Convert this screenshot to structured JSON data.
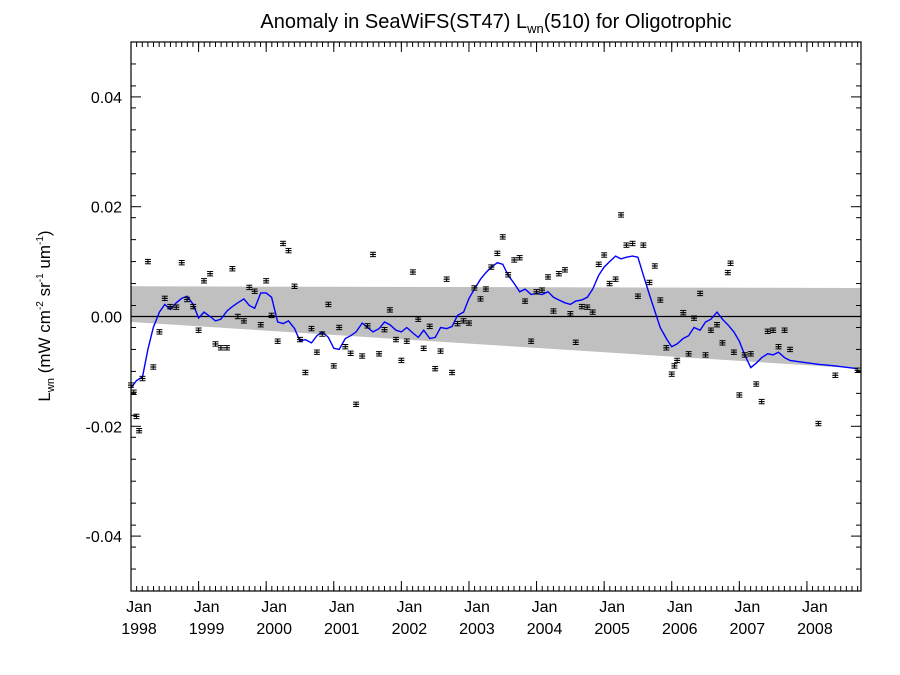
{
  "chart_data": {
    "type": "scatter",
    "title": "Anomaly in SeaWiFS(ST47) L",
    "title_sub": "wn",
    "title_rest": "(510) for Oligotrophic",
    "ylabel_parts": {
      "main": "L",
      "main_sub": "wn",
      "units_open": " (mW cm",
      "exp1": "-2",
      "mid1": " sr",
      "exp2": "-1",
      "mid2": " um",
      "exp3": "-1",
      "units_close": ")"
    },
    "xlim": [
      1998.0,
      2008.8
    ],
    "ylim": [
      -0.05,
      0.05
    ],
    "y_ticks": [
      {
        "value": 0.04,
        "label": "0.04"
      },
      {
        "value": 0.02,
        "label": "0.02"
      },
      {
        "value": 0.0,
        "label": "0.00"
      },
      {
        "value": -0.02,
        "label": "-0.02"
      },
      {
        "value": -0.04,
        "label": "-0.04"
      }
    ],
    "x_ticks": [
      {
        "value": 1998.0,
        "month": "Jan",
        "year": "1998"
      },
      {
        "value": 1999.0,
        "month": "Jan",
        "year": "1999"
      },
      {
        "value": 2000.0,
        "month": "Jan",
        "year": "2000"
      },
      {
        "value": 2001.0,
        "month": "Jan",
        "year": "2001"
      },
      {
        "value": 2002.0,
        "month": "Jan",
        "year": "2002"
      },
      {
        "value": 2003.0,
        "month": "Jan",
        "year": "2003"
      },
      {
        "value": 2004.0,
        "month": "Jan",
        "year": "2004"
      },
      {
        "value": 2005.0,
        "month": "Jan",
        "year": "2005"
      },
      {
        "value": 2006.0,
        "month": "Jan",
        "year": "2006"
      },
      {
        "value": 2007.0,
        "month": "Jan",
        "year": "2007"
      },
      {
        "value": 2008.0,
        "month": "Jan",
        "year": "2008"
      }
    ],
    "zero_line": 0.0,
    "confidence_band": {
      "color": "#c0c0c0",
      "start": {
        "x": 1998.0,
        "upper": 0.0055,
        "lower": -0.001
      },
      "end": {
        "x": 2008.8,
        "upper": 0.0052,
        "lower": -0.0095
      }
    },
    "points": [
      {
        "x": 1998.0,
        "y": -0.0125
      },
      {
        "x": 1998.04,
        "y": -0.0138
      },
      {
        "x": 1998.08,
        "y": -0.0182
      },
      {
        "x": 1998.12,
        "y": -0.0208
      },
      {
        "x": 1998.17,
        "y": -0.0113
      },
      {
        "x": 1998.25,
        "y": 0.01
      },
      {
        "x": 1998.33,
        "y": -0.0092
      },
      {
        "x": 1998.42,
        "y": -0.0028
      },
      {
        "x": 1998.5,
        "y": 0.0033
      },
      {
        "x": 1998.58,
        "y": 0.0018
      },
      {
        "x": 1998.67,
        "y": 0.0017
      },
      {
        "x": 1998.75,
        "y": 0.0098
      },
      {
        "x": 1998.83,
        "y": 0.0031
      },
      {
        "x": 1998.92,
        "y": 0.0018
      },
      {
        "x": 1999.0,
        "y": -0.0025
      },
      {
        "x": 1999.08,
        "y": 0.0065
      },
      {
        "x": 1999.17,
        "y": 0.0078
      },
      {
        "x": 1999.25,
        "y": -0.005
      },
      {
        "x": 1999.33,
        "y": -0.0057
      },
      {
        "x": 1999.42,
        "y": -0.0057
      },
      {
        "x": 1999.5,
        "y": 0.0087
      },
      {
        "x": 1999.58,
        "y": 0.0
      },
      {
        "x": 1999.67,
        "y": -0.0008
      },
      {
        "x": 1999.75,
        "y": 0.0053
      },
      {
        "x": 1999.83,
        "y": 0.0046
      },
      {
        "x": 1999.92,
        "y": -0.0015
      },
      {
        "x": 2000.0,
        "y": 0.0065
      },
      {
        "x": 2000.08,
        "y": 0.0002
      },
      {
        "x": 2000.17,
        "y": -0.0045
      },
      {
        "x": 2000.25,
        "y": 0.0133
      },
      {
        "x": 2000.33,
        "y": 0.012
      },
      {
        "x": 2000.42,
        "y": 0.0055
      },
      {
        "x": 2000.5,
        "y": -0.0042
      },
      {
        "x": 2000.58,
        "y": -0.0102
      },
      {
        "x": 2000.67,
        "y": -0.0022
      },
      {
        "x": 2000.75,
        "y": -0.0065
      },
      {
        "x": 2000.83,
        "y": -0.0032
      },
      {
        "x": 2000.92,
        "y": 0.0022
      },
      {
        "x": 2001.0,
        "y": -0.009
      },
      {
        "x": 2001.08,
        "y": -0.002
      },
      {
        "x": 2001.17,
        "y": -0.0055
      },
      {
        "x": 2001.25,
        "y": -0.0067
      },
      {
        "x": 2001.33,
        "y": -0.016
      },
      {
        "x": 2001.42,
        "y": -0.0072
      },
      {
        "x": 2001.5,
        "y": -0.0017
      },
      {
        "x": 2001.58,
        "y": 0.0113
      },
      {
        "x": 2001.67,
        "y": -0.0068
      },
      {
        "x": 2001.75,
        "y": -0.0024
      },
      {
        "x": 2001.83,
        "y": 0.0012
      },
      {
        "x": 2001.92,
        "y": -0.0042
      },
      {
        "x": 2002.0,
        "y": -0.008
      },
      {
        "x": 2002.08,
        "y": -0.0045
      },
      {
        "x": 2002.17,
        "y": 0.0081
      },
      {
        "x": 2002.25,
        "y": -0.0005
      },
      {
        "x": 2002.33,
        "y": -0.0058
      },
      {
        "x": 2002.42,
        "y": -0.0018
      },
      {
        "x": 2002.5,
        "y": -0.0095
      },
      {
        "x": 2002.58,
        "y": -0.0063
      },
      {
        "x": 2002.67,
        "y": 0.0068
      },
      {
        "x": 2002.75,
        "y": -0.0102
      },
      {
        "x": 2002.83,
        "y": -0.0013
      },
      {
        "x": 2002.92,
        "y": -0.0008
      },
      {
        "x": 2003.0,
        "y": -0.0012
      },
      {
        "x": 2003.08,
        "y": 0.0052
      },
      {
        "x": 2003.17,
        "y": 0.0032
      },
      {
        "x": 2003.25,
        "y": 0.005
      },
      {
        "x": 2003.33,
        "y": 0.009
      },
      {
        "x": 2003.42,
        "y": 0.0115
      },
      {
        "x": 2003.5,
        "y": 0.0145
      },
      {
        "x": 2003.58,
        "y": 0.0076
      },
      {
        "x": 2003.67,
        "y": 0.0103
      },
      {
        "x": 2003.75,
        "y": 0.0107
      },
      {
        "x": 2003.83,
        "y": 0.0028
      },
      {
        "x": 2003.92,
        "y": -0.0045
      },
      {
        "x": 2004.0,
        "y": 0.0045
      },
      {
        "x": 2004.08,
        "y": 0.0048
      },
      {
        "x": 2004.17,
        "y": 0.0072
      },
      {
        "x": 2004.25,
        "y": 0.001
      },
      {
        "x": 2004.33,
        "y": 0.0078
      },
      {
        "x": 2004.42,
        "y": 0.0085
      },
      {
        "x": 2004.5,
        "y": 0.0005
      },
      {
        "x": 2004.58,
        "y": -0.0047
      },
      {
        "x": 2004.67,
        "y": 0.0018
      },
      {
        "x": 2004.75,
        "y": 0.0017
      },
      {
        "x": 2004.83,
        "y": 0.0008
      },
      {
        "x": 2004.92,
        "y": 0.0095
      },
      {
        "x": 2005.0,
        "y": 0.0112
      },
      {
        "x": 2005.08,
        "y": 0.006
      },
      {
        "x": 2005.17,
        "y": 0.0068
      },
      {
        "x": 2005.25,
        "y": 0.0185
      },
      {
        "x": 2005.33,
        "y": 0.013
      },
      {
        "x": 2005.42,
        "y": 0.0133
      },
      {
        "x": 2005.5,
        "y": 0.0037
      },
      {
        "x": 2005.58,
        "y": 0.013
      },
      {
        "x": 2005.67,
        "y": 0.0062
      },
      {
        "x": 2005.75,
        "y": 0.0092
      },
      {
        "x": 2005.83,
        "y": 0.003
      },
      {
        "x": 2005.92,
        "y": -0.0057
      },
      {
        "x": 2006.0,
        "y": -0.0105
      },
      {
        "x": 2006.04,
        "y": -0.009
      },
      {
        "x": 2006.08,
        "y": -0.008
      },
      {
        "x": 2006.17,
        "y": 0.0007
      },
      {
        "x": 2006.25,
        "y": -0.0068
      },
      {
        "x": 2006.33,
        "y": -0.0003
      },
      {
        "x": 2006.42,
        "y": 0.0042
      },
      {
        "x": 2006.5,
        "y": -0.007
      },
      {
        "x": 2006.58,
        "y": -0.0025
      },
      {
        "x": 2006.67,
        "y": -0.0015
      },
      {
        "x": 2006.75,
        "y": -0.0048
      },
      {
        "x": 2006.83,
        "y": 0.008
      },
      {
        "x": 2006.87,
        "y": 0.0097
      },
      {
        "x": 2006.92,
        "y": -0.0065
      },
      {
        "x": 2007.0,
        "y": -0.0143
      },
      {
        "x": 2007.08,
        "y": -0.007
      },
      {
        "x": 2007.17,
        "y": -0.0068
      },
      {
        "x": 2007.25,
        "y": -0.0123
      },
      {
        "x": 2007.33,
        "y": -0.0155
      },
      {
        "x": 2007.42,
        "y": -0.0027
      },
      {
        "x": 2007.5,
        "y": -0.0025
      },
      {
        "x": 2007.58,
        "y": -0.0055
      },
      {
        "x": 2007.67,
        "y": -0.0025
      },
      {
        "x": 2007.75,
        "y": -0.006
      },
      {
        "x": 2008.17,
        "y": -0.0195
      },
      {
        "x": 2008.42,
        "y": -0.0107
      },
      {
        "x": 2008.75,
        "y": -0.0098
      }
    ],
    "smoothed_line": {
      "color": "#0000ff",
      "points": [
        {
          "x": 1998.0,
          "y": -0.013
        },
        {
          "x": 1998.08,
          "y": -0.0117
        },
        {
          "x": 1998.17,
          "y": -0.011
        },
        {
          "x": 1998.25,
          "y": -0.006
        },
        {
          "x": 1998.33,
          "y": -0.002
        },
        {
          "x": 1998.42,
          "y": 0.0008
        },
        {
          "x": 1998.5,
          "y": 0.0022
        },
        {
          "x": 1998.58,
          "y": 0.0013
        },
        {
          "x": 1998.67,
          "y": 0.0025
        },
        {
          "x": 1998.75,
          "y": 0.0033
        },
        {
          "x": 1998.83,
          "y": 0.0037
        },
        {
          "x": 1998.92,
          "y": 0.0022
        },
        {
          "x": 1999.0,
          "y": -0.0003
        },
        {
          "x": 1999.08,
          "y": 0.0008
        },
        {
          "x": 1999.17,
          "y": 0.0
        },
        {
          "x": 1999.25,
          "y": -0.0008
        },
        {
          "x": 1999.33,
          "y": -0.0005
        },
        {
          "x": 1999.42,
          "y": 0.001
        },
        {
          "x": 1999.5,
          "y": 0.0018
        },
        {
          "x": 1999.58,
          "y": 0.0025
        },
        {
          "x": 1999.67,
          "y": 0.0032
        },
        {
          "x": 1999.75,
          "y": 0.002
        },
        {
          "x": 1999.83,
          "y": 0.0015
        },
        {
          "x": 1999.92,
          "y": 0.0043
        },
        {
          "x": 2000.0,
          "y": 0.0043
        },
        {
          "x": 2000.08,
          "y": 0.0035
        },
        {
          "x": 2000.17,
          "y": -0.001
        },
        {
          "x": 2000.25,
          "y": -0.0013
        },
        {
          "x": 2000.33,
          "y": -0.0008
        },
        {
          "x": 2000.42,
          "y": -0.0022
        },
        {
          "x": 2000.5,
          "y": -0.0045
        },
        {
          "x": 2000.58,
          "y": -0.0042
        },
        {
          "x": 2000.67,
          "y": -0.0048
        },
        {
          "x": 2000.75,
          "y": -0.0035
        },
        {
          "x": 2000.83,
          "y": -0.0028
        },
        {
          "x": 2000.92,
          "y": -0.0038
        },
        {
          "x": 2001.0,
          "y": -0.0058
        },
        {
          "x": 2001.08,
          "y": -0.006
        },
        {
          "x": 2001.17,
          "y": -0.004
        },
        {
          "x": 2001.25,
          "y": -0.0035
        },
        {
          "x": 2001.33,
          "y": -0.0028
        },
        {
          "x": 2001.42,
          "y": -0.0012
        },
        {
          "x": 2001.5,
          "y": -0.002
        },
        {
          "x": 2001.58,
          "y": -0.0028
        },
        {
          "x": 2001.67,
          "y": -0.0022
        },
        {
          "x": 2001.75,
          "y": -0.001
        },
        {
          "x": 2001.83,
          "y": -0.0015
        },
        {
          "x": 2001.92,
          "y": -0.0025
        },
        {
          "x": 2002.0,
          "y": -0.0028
        },
        {
          "x": 2002.08,
          "y": -0.002
        },
        {
          "x": 2002.17,
          "y": -0.003
        },
        {
          "x": 2002.25,
          "y": -0.0038
        },
        {
          "x": 2002.33,
          "y": -0.0025
        },
        {
          "x": 2002.42,
          "y": -0.004
        },
        {
          "x": 2002.5,
          "y": -0.0038
        },
        {
          "x": 2002.58,
          "y": -0.002
        },
        {
          "x": 2002.67,
          "y": -0.0022
        },
        {
          "x": 2002.75,
          "y": -0.0018
        },
        {
          "x": 2002.83,
          "y": 0.0002
        },
        {
          "x": 2002.92,
          "y": 0.0008
        },
        {
          "x": 2003.0,
          "y": 0.0033
        },
        {
          "x": 2003.08,
          "y": 0.005
        },
        {
          "x": 2003.17,
          "y": 0.0068
        },
        {
          "x": 2003.25,
          "y": 0.008
        },
        {
          "x": 2003.33,
          "y": 0.009
        },
        {
          "x": 2003.42,
          "y": 0.0098
        },
        {
          "x": 2003.5,
          "y": 0.0095
        },
        {
          "x": 2003.58,
          "y": 0.0075
        },
        {
          "x": 2003.67,
          "y": 0.006
        },
        {
          "x": 2003.75,
          "y": 0.0045
        },
        {
          "x": 2003.83,
          "y": 0.005
        },
        {
          "x": 2003.92,
          "y": 0.004
        },
        {
          "x": 2004.0,
          "y": 0.0042
        },
        {
          "x": 2004.08,
          "y": 0.004
        },
        {
          "x": 2004.17,
          "y": 0.0045
        },
        {
          "x": 2004.25,
          "y": 0.0035
        },
        {
          "x": 2004.33,
          "y": 0.003
        },
        {
          "x": 2004.42,
          "y": 0.0025
        },
        {
          "x": 2004.5,
          "y": 0.0022
        },
        {
          "x": 2004.58,
          "y": 0.0028
        },
        {
          "x": 2004.67,
          "y": 0.003
        },
        {
          "x": 2004.75,
          "y": 0.0035
        },
        {
          "x": 2004.83,
          "y": 0.005
        },
        {
          "x": 2004.92,
          "y": 0.0075
        },
        {
          "x": 2005.0,
          "y": 0.009
        },
        {
          "x": 2005.08,
          "y": 0.01
        },
        {
          "x": 2005.17,
          "y": 0.011
        },
        {
          "x": 2005.25,
          "y": 0.0105
        },
        {
          "x": 2005.33,
          "y": 0.0108
        },
        {
          "x": 2005.42,
          "y": 0.011
        },
        {
          "x": 2005.5,
          "y": 0.0108
        },
        {
          "x": 2005.58,
          "y": 0.0075
        },
        {
          "x": 2005.67,
          "y": 0.004
        },
        {
          "x": 2005.75,
          "y": 0.001
        },
        {
          "x": 2005.83,
          "y": -0.002
        },
        {
          "x": 2005.92,
          "y": -0.004
        },
        {
          "x": 2006.0,
          "y": -0.0055
        },
        {
          "x": 2006.08,
          "y": -0.005
        },
        {
          "x": 2006.17,
          "y": -0.004
        },
        {
          "x": 2006.25,
          "y": -0.0035
        },
        {
          "x": 2006.33,
          "y": -0.002
        },
        {
          "x": 2006.42,
          "y": -0.0025
        },
        {
          "x": 2006.5,
          "y": -0.001
        },
        {
          "x": 2006.58,
          "y": -0.0005
        },
        {
          "x": 2006.67,
          "y": 0.0008
        },
        {
          "x": 2006.75,
          "y": -0.0005
        },
        {
          "x": 2006.83,
          "y": -0.0015
        },
        {
          "x": 2006.92,
          "y": -0.0028
        },
        {
          "x": 2007.0,
          "y": -0.0045
        },
        {
          "x": 2007.08,
          "y": -0.007
        },
        {
          "x": 2007.17,
          "y": -0.0093
        },
        {
          "x": 2007.25,
          "y": -0.0085
        },
        {
          "x": 2007.33,
          "y": -0.0075
        },
        {
          "x": 2007.42,
          "y": -0.0068
        },
        {
          "x": 2007.5,
          "y": -0.007
        },
        {
          "x": 2007.58,
          "y": -0.0065
        },
        {
          "x": 2007.67,
          "y": -0.0075
        },
        {
          "x": 2007.75,
          "y": -0.008
        },
        {
          "x": 2007.92,
          "y": -0.0083
        },
        {
          "x": 2008.17,
          "y": -0.0087
        },
        {
          "x": 2008.42,
          "y": -0.009
        },
        {
          "x": 2008.75,
          "y": -0.0095
        }
      ]
    },
    "grid": false,
    "error_bar_halfwidth": 0.0004
  }
}
